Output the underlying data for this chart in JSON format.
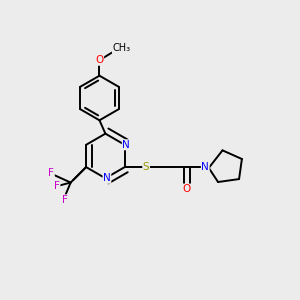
{
  "bg_color": "#ececec",
  "bond_color": "#000000",
  "bond_width": 1.4,
  "atom_colors": {
    "N": "#0000ff",
    "O": "#ff0000",
    "S": "#999900",
    "F": "#cc00cc",
    "C": "#000000"
  },
  "font_size": 7.5,
  "fig_size": [
    3.0,
    3.0
  ],
  "dpi": 100
}
